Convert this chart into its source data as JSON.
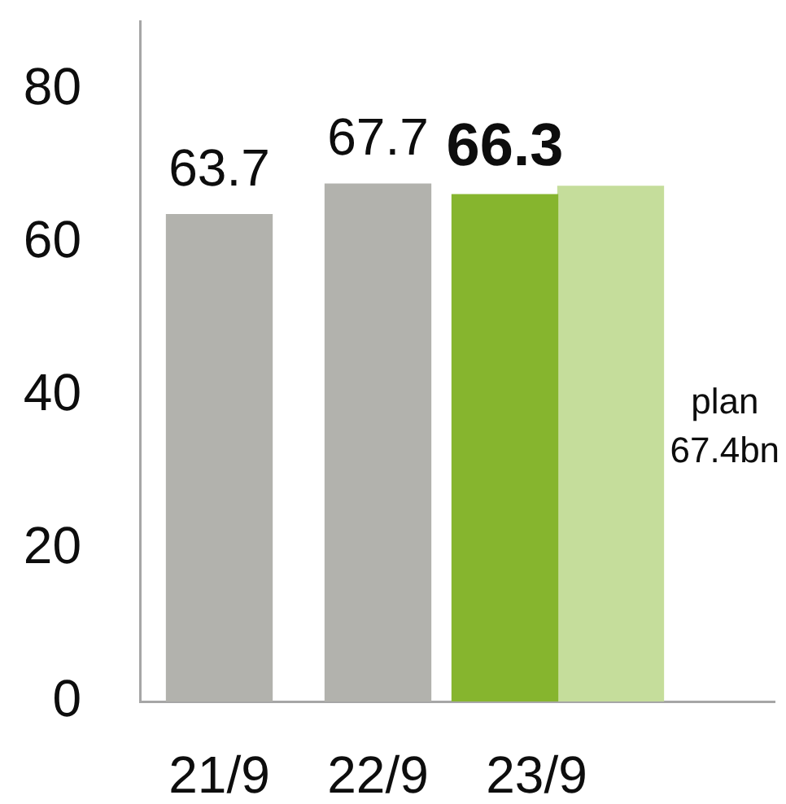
{
  "chart_data": {
    "type": "bar",
    "categories": [
      "21/9",
      "22/9",
      "23/9"
    ],
    "series": [
      {
        "colors": [
          "#b2b2ad",
          "#b2b2ad",
          "#86b52e"
        ],
        "values": [
          63.7,
          67.7,
          66.3
        ],
        "value_labels": [
          "63.7",
          "67.7",
          "66.3"
        ]
      },
      {
        "color": "#c5dd9b",
        "values": [
          null,
          null,
          67.4
        ]
      }
    ],
    "annotations": [
      "plan 67.4bn"
    ],
    "ylim": [
      0,
      89
    ],
    "yticks": [
      0,
      20,
      40,
      60,
      80
    ],
    "grid": false
  }
}
